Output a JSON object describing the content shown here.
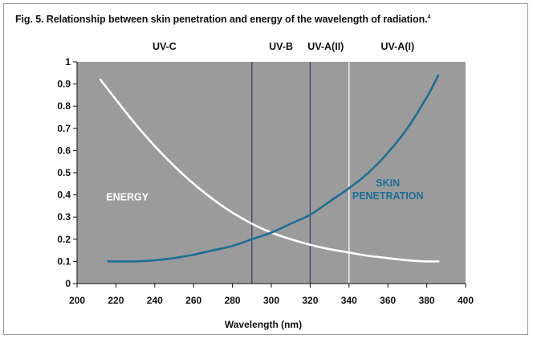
{
  "figure": {
    "title": "Fig. 5. Relationship between skin penetration and energy of the wavelength of radiation.",
    "title_superscript": "4"
  },
  "chart_data": {
    "type": "line",
    "title": "Fig. 5. Relationship between skin penetration and energy of the wavelength of radiation.",
    "xlabel": "Wavelength (nm)",
    "ylabel": "",
    "xlim": [
      200,
      400
    ],
    "ylim": [
      0,
      1
    ],
    "x_ticks": [
      "200",
      "220",
      "240",
      "260",
      "280",
      "300",
      "320",
      "340",
      "360",
      "380",
      "400"
    ],
    "y_ticks": [
      "0",
      "0.1",
      "0.2",
      "0.3",
      "0.4",
      "0.5",
      "0.6",
      "0.7",
      "0.8",
      "0.9",
      "1"
    ],
    "grid": false,
    "plot_background": "#9b9b9b",
    "bands": [
      {
        "label": "UV-C",
        "center": 245
      },
      {
        "label": "UV-B",
        "center": 305
      },
      {
        "label": "UV-A(II)",
        "center": 328
      },
      {
        "label": "UV-A(I)",
        "center": 365
      }
    ],
    "dividers": [
      {
        "x": 290,
        "color": "#3a3f78"
      },
      {
        "x": 320,
        "color": "#3a3f78"
      },
      {
        "x": 340,
        "color": "#ffffff"
      }
    ],
    "series": [
      {
        "name": "ENERGY",
        "color": "#ffffff",
        "label_position": [
          215,
          0.39
        ],
        "x": [
          212,
          220,
          230,
          240,
          250,
          260,
          270,
          280,
          290,
          300,
          310,
          320,
          330,
          340,
          350,
          360,
          370,
          380,
          386
        ],
        "y": [
          0.92,
          0.83,
          0.72,
          0.62,
          0.53,
          0.45,
          0.38,
          0.32,
          0.27,
          0.23,
          0.2,
          0.175,
          0.155,
          0.14,
          0.125,
          0.115,
          0.105,
          0.1,
          0.1
        ]
      },
      {
        "name": "SKIN PENETRATION",
        "label_line1": "SKIN",
        "label_line2": "PENETRATION",
        "color": "#1b6f96",
        "label_position": [
          360,
          0.42
        ],
        "x": [
          216,
          220,
          230,
          240,
          250,
          260,
          270,
          280,
          290,
          300,
          310,
          320,
          330,
          340,
          350,
          360,
          370,
          380,
          386
        ],
        "y": [
          0.1,
          0.1,
          0.1,
          0.105,
          0.115,
          0.13,
          0.15,
          0.17,
          0.2,
          0.23,
          0.27,
          0.31,
          0.37,
          0.43,
          0.5,
          0.59,
          0.7,
          0.84,
          0.94
        ]
      }
    ]
  }
}
